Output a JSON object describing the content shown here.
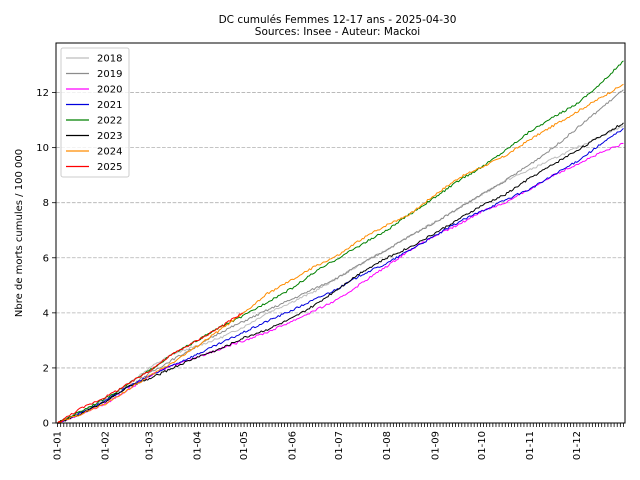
{
  "chart_data": {
    "type": "line",
    "title": "DC cumulés Femmes 12-17 ans  - 2025-04-30",
    "subtitle": "Sources: Insee - Auteur: Mackoi",
    "xlabel": "",
    "ylabel": "Nbre de morts cumules / 100 000",
    "xlim": [
      0,
      366
    ],
    "ylim": [
      0,
      13.8
    ],
    "y_ticks": [
      0,
      2,
      4,
      6,
      8,
      10,
      12
    ],
    "x_ticks": [
      {
        "day": 1,
        "label": "01-01"
      },
      {
        "day": 32,
        "label": "01-02"
      },
      {
        "day": 60,
        "label": "01-03"
      },
      {
        "day": 91,
        "label": "01-04"
      },
      {
        "day": 121,
        "label": "01-05"
      },
      {
        "day": 152,
        "label": "01-06"
      },
      {
        "day": 182,
        "label": "01-07"
      },
      {
        "day": 213,
        "label": "01-08"
      },
      {
        "day": 244,
        "label": "01-09"
      },
      {
        "day": 274,
        "label": "01-10"
      },
      {
        "day": 305,
        "label": "01-11"
      },
      {
        "day": 335,
        "label": "01-12"
      }
    ],
    "grid": "horizontal dashed",
    "legend_position": "top-left",
    "series": [
      {
        "name": "2018",
        "color": "#bdbdbd",
        "x": [
          1,
          15,
          32,
          46,
          60,
          75,
          91,
          106,
          121,
          136,
          152,
          167,
          182,
          197,
          213,
          228,
          244,
          259,
          274,
          289,
          305,
          320,
          335,
          350,
          365
        ],
        "y": [
          0,
          0.4,
          0.85,
          1.4,
          2.0,
          2.5,
          2.8,
          3.1,
          3.5,
          4.0,
          4.4,
          4.8,
          5.3,
          5.8,
          6.3,
          6.8,
          7.3,
          7.8,
          8.3,
          8.8,
          9.2,
          9.6,
          10.0,
          10.4,
          10.8
        ]
      },
      {
        "name": "2019",
        "color": "#8c8c8c",
        "x": [
          1,
          15,
          32,
          46,
          60,
          75,
          91,
          106,
          121,
          136,
          152,
          167,
          182,
          197,
          213,
          228,
          244,
          259,
          274,
          289,
          305,
          320,
          335,
          350,
          365
        ],
        "y": [
          0,
          0.35,
          0.8,
          1.3,
          1.8,
          2.3,
          2.8,
          3.3,
          3.7,
          4.1,
          4.5,
          4.9,
          5.3,
          5.8,
          6.3,
          6.8,
          7.3,
          7.8,
          8.3,
          8.8,
          9.4,
          10.0,
          10.7,
          11.4,
          12.1
        ]
      },
      {
        "name": "2020",
        "color": "#ff00ff",
        "x": [
          1,
          15,
          32,
          46,
          60,
          75,
          91,
          106,
          121,
          136,
          152,
          167,
          182,
          197,
          213,
          228,
          244,
          259,
          274,
          289,
          305,
          320,
          335,
          350,
          365
        ],
        "y": [
          0,
          0.3,
          0.7,
          1.2,
          1.7,
          2.1,
          2.4,
          2.7,
          3.0,
          3.3,
          3.7,
          4.1,
          4.5,
          5.1,
          5.7,
          6.3,
          6.8,
          7.2,
          7.7,
          8.0,
          8.5,
          9.0,
          9.4,
          9.8,
          10.15
        ]
      },
      {
        "name": "2021",
        "color": "#0000dd",
        "x": [
          1,
          15,
          32,
          46,
          60,
          75,
          91,
          106,
          121,
          136,
          152,
          167,
          182,
          197,
          213,
          228,
          244,
          259,
          274,
          289,
          305,
          320,
          335,
          350,
          365
        ],
        "y": [
          0,
          0.35,
          0.8,
          1.3,
          1.7,
          2.1,
          2.5,
          2.9,
          3.3,
          3.7,
          4.1,
          4.5,
          4.9,
          5.4,
          5.8,
          6.3,
          6.8,
          7.3,
          7.7,
          8.1,
          8.5,
          9.0,
          9.5,
          10.1,
          10.7
        ]
      },
      {
        "name": "2022",
        "color": "#008000",
        "x": [
          1,
          15,
          32,
          46,
          60,
          75,
          91,
          106,
          121,
          136,
          152,
          167,
          182,
          197,
          213,
          228,
          244,
          259,
          274,
          289,
          305,
          320,
          335,
          350,
          365
        ],
        "y": [
          0,
          0.4,
          0.9,
          1.4,
          1.9,
          2.5,
          3.0,
          3.5,
          3.9,
          4.4,
          4.9,
          5.5,
          6.0,
          6.5,
          7.0,
          7.6,
          8.2,
          8.8,
          9.3,
          9.9,
          10.6,
          11.1,
          11.6,
          12.3,
          13.15
        ]
      },
      {
        "name": "2023",
        "color": "#000000",
        "x": [
          1,
          15,
          32,
          46,
          60,
          75,
          91,
          106,
          121,
          136,
          152,
          167,
          182,
          197,
          213,
          228,
          244,
          259,
          274,
          289,
          305,
          320,
          335,
          350,
          365
        ],
        "y": [
          0,
          0.3,
          0.8,
          1.3,
          1.6,
          2.0,
          2.4,
          2.7,
          3.1,
          3.4,
          3.8,
          4.3,
          4.9,
          5.5,
          6.0,
          6.4,
          6.9,
          7.4,
          7.9,
          8.3,
          8.9,
          9.4,
          9.9,
          10.4,
          10.9
        ]
      },
      {
        "name": "2024",
        "color": "#ff8c00",
        "x": [
          1,
          15,
          32,
          46,
          60,
          75,
          91,
          106,
          121,
          136,
          152,
          167,
          182,
          197,
          213,
          228,
          244,
          259,
          274,
          289,
          305,
          320,
          335,
          350,
          365
        ],
        "y": [
          0,
          0.3,
          0.7,
          1.2,
          1.7,
          2.2,
          2.8,
          3.4,
          4.0,
          4.7,
          5.2,
          5.7,
          6.1,
          6.7,
          7.2,
          7.6,
          8.3,
          8.9,
          9.3,
          9.7,
          10.3,
          10.8,
          11.3,
          11.8,
          12.3
        ]
      },
      {
        "name": "2025",
        "color": "#ff0000",
        "x": [
          1,
          15,
          32,
          46,
          60,
          75,
          91,
          106,
          120
        ],
        "y": [
          0,
          0.5,
          0.95,
          1.4,
          1.9,
          2.5,
          3.0,
          3.5,
          4.0
        ]
      }
    ]
  }
}
